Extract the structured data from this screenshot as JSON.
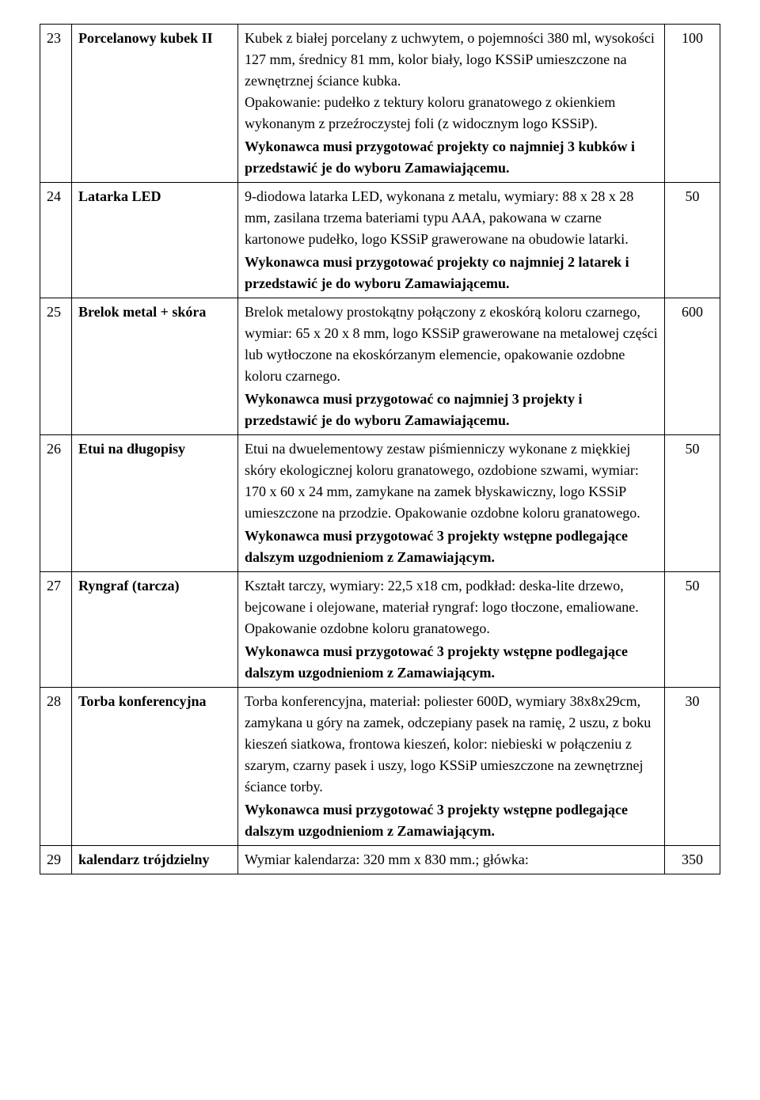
{
  "table": {
    "columns": {
      "num_width": 40,
      "name_width": 210,
      "qty_width": 70,
      "border_color": "#000000",
      "background_color": "#ffffff",
      "text_color": "#000000",
      "font_family": "Times New Roman",
      "body_fontsize": 18
    },
    "rows": [
      {
        "num": "23",
        "name": "Porcelanowy kubek II",
        "desc_main": "Kubek z białej porcelany z uchwytem, o pojemności 380 ml, wysokości 127 mm, średnicy 81 mm, kolor biały, logo KSSiP umieszczone na zewnętrznej ściance kubka.\nOpakowanie: pudełko z tektury koloru granatowego z okienkiem wykonanym z przeźroczystej foli (z widocznym logo KSSiP).",
        "desc_bold": "Wykonawca musi przygotować projekty co najmniej 3 kubków i przedstawić je do wyboru Zamawiającemu.",
        "qty": "100"
      },
      {
        "num": "24",
        "name": "Latarka LED",
        "desc_main": "9-diodowa latarka LED, wykonana z metalu, wymiary: 88 x 28 x 28 mm, zasilana trzema bateriami typu AAA, pakowana w czarne kartonowe pudełko, logo KSSiP grawerowane na obudowie latarki.",
        "desc_bold": "Wykonawca musi przygotować projekty co najmniej 2 latarek i przedstawić je do wyboru Zamawiającemu.",
        "qty": "50"
      },
      {
        "num": "25",
        "name": "Brelok metal + skóra",
        "desc_main": "Brelok metalowy prostokątny połączony z ekoskórą koloru czarnego, wymiar: 65 x 20 x 8 mm, logo KSSiP grawerowane na metalowej części lub wytłoczone na ekoskórzanym elemencie, opakowanie ozdobne koloru czarnego.",
        "desc_bold": "Wykonawca musi przygotować co najmniej 3 projekty i przedstawić je do wyboru Zamawiającemu.",
        "qty": "600"
      },
      {
        "num": "26",
        "name": "Etui na długopisy",
        "desc_main": "Etui na dwuelementowy zestaw piśmienniczy wykonane z miękkiej skóry ekologicznej  koloru granatowego, ozdobione szwami, wymiar: 170 x 60 x 24 mm, zamykane na zamek błyskawiczny, logo KSSiP umieszczone  na przodzie. Opakowanie ozdobne koloru granatowego.",
        "desc_bold": "Wykonawca musi przygotować 3 projekty wstępne podlegające dalszym uzgodnieniom z Zamawiającym.",
        "qty": "50"
      },
      {
        "num": "27",
        "name": "Ryngraf (tarcza)",
        "desc_main": "Kształt tarczy, wymiary: 22,5 x18 cm, podkład: deska-lite drzewo, bejcowane i olejowane, materiał ryngraf: logo tłoczone, emaliowane. Opakowanie ozdobne koloru granatowego.",
        "desc_bold": "Wykonawca musi przygotować 3 projekty wstępne podlegające dalszym uzgodnieniom z Zamawiającym.",
        "qty": "50"
      },
      {
        "num": "28",
        "name": "Torba konferencyjna",
        "desc_main": "Torba konferencyjna, materiał: poliester 600D, wymiary 38x8x29cm, zamykana u góry na zamek, odczepiany pasek na ramię, 2 uszu, z boku kieszeń siatkowa, frontowa kieszeń, kolor: niebieski w połączeniu z szarym, czarny pasek i uszy, logo KSSiP umieszczone na zewnętrznej ściance torby.",
        "desc_bold": "Wykonawca musi przygotować 3 projekty wstępne podlegające dalszym uzgodnieniom z Zamawiającym.",
        "qty": "30"
      },
      {
        "num": "29",
        "name": "kalendarz trójdzielny",
        "desc_main": "Wymiar kalendarza: 320 mm x 830 mm.; główka:",
        "desc_bold": "",
        "qty": "350"
      }
    ]
  }
}
